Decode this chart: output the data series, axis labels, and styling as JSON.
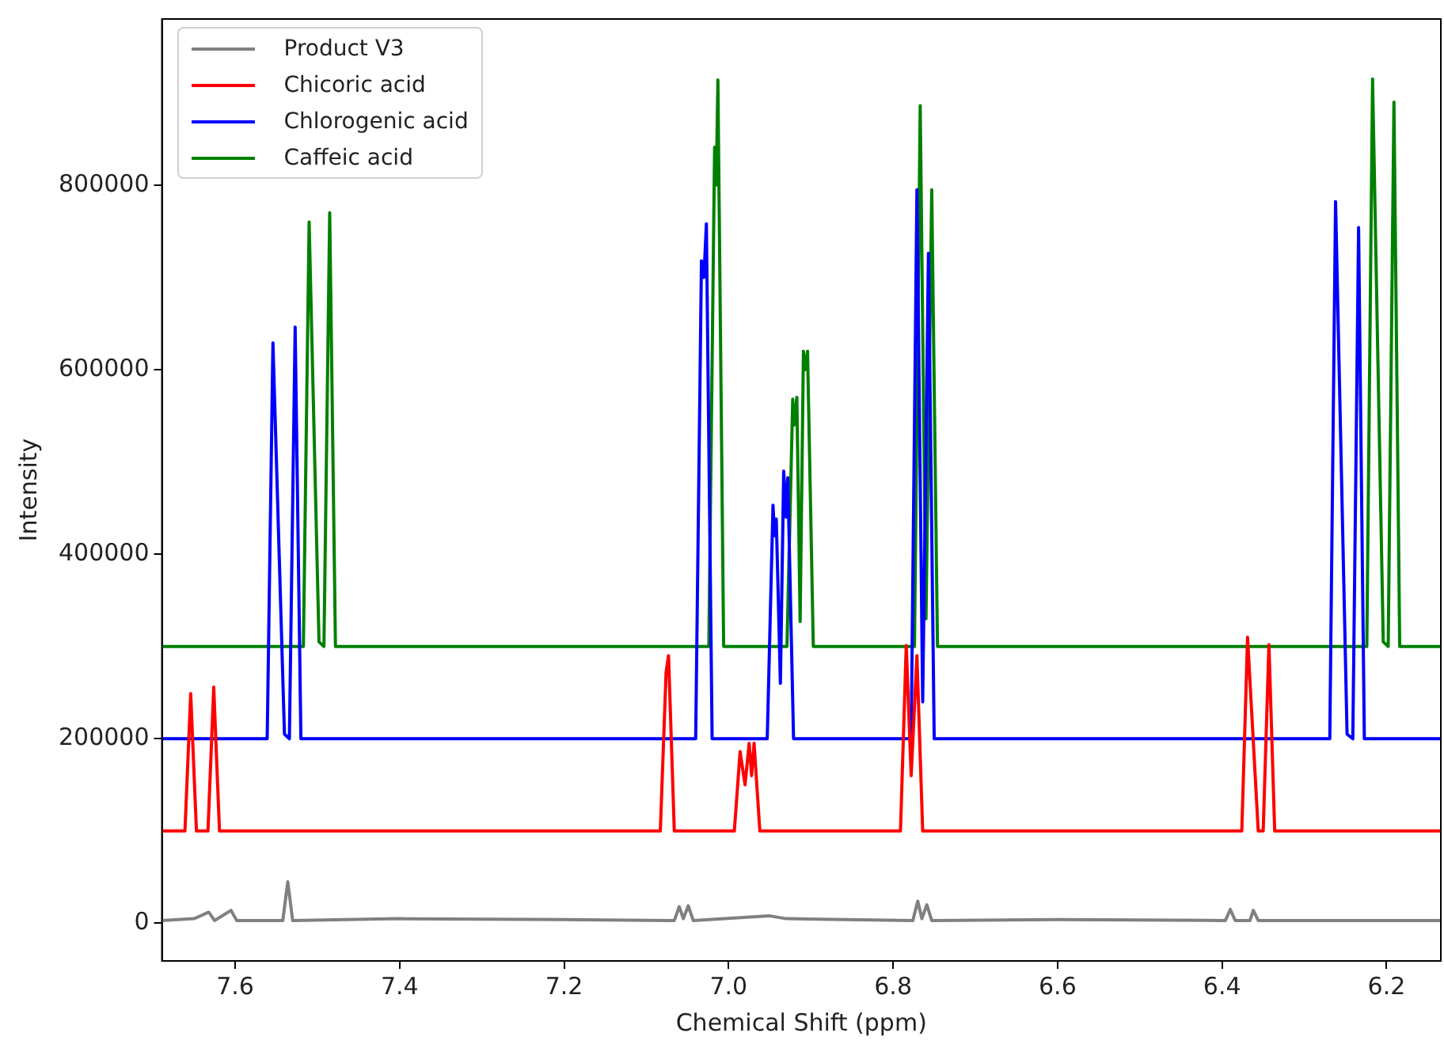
{
  "chart_data": {
    "type": "line",
    "xlabel": "Chemical Shift (ppm)",
    "ylabel": "Intensity",
    "xlim": [
      7.689,
      6.134
    ],
    "ylim": [
      -40800,
      980000
    ],
    "xticks": [
      7.6,
      7.4,
      7.2,
      {
        "value": 7,
        "label": "7.0"
      },
      6.8,
      6.6,
      6.4,
      6.2
    ],
    "yticks": [
      0,
      200000,
      400000,
      600000,
      800000
    ],
    "legend": "top left",
    "marker": "none",
    "line_style": "solid",
    "series": [
      {
        "name": "Product V3",
        "color": "#808080",
        "x": [
          7.689,
          7.65,
          7.632,
          7.625,
          7.605,
          7.598,
          7.542,
          7.536,
          7.53,
          7.4,
          7.2,
          7.066,
          7.06,
          7.055,
          7.049,
          7.043,
          6.95,
          6.93,
          6.776,
          6.77,
          6.765,
          6.759,
          6.753,
          6.6,
          6.396,
          6.39,
          6.384,
          6.366,
          6.362,
          6.356,
          6.134
        ],
        "values": [
          3000,
          5000,
          12000,
          3000,
          14000,
          3000,
          3000,
          45000,
          3000,
          5000,
          4000,
          3000,
          18000,
          5000,
          19000,
          3000,
          8000,
          5000,
          3000,
          24000,
          5000,
          20000,
          3000,
          4000,
          3000,
          15000,
          3000,
          3000,
          14000,
          3000,
          3000
        ]
      },
      {
        "name": "Chicoric acid",
        "color": "#ff0000",
        "x": [
          7.689,
          7.661,
          7.654,
          7.647,
          7.633,
          7.626,
          7.619,
          7.083,
          7.076,
          7.073,
          7.066,
          6.993,
          6.986,
          6.98,
          6.975,
          6.972,
          6.969,
          6.962,
          6.791,
          6.784,
          6.778,
          6.771,
          6.764,
          6.376,
          6.369,
          6.356,
          6.35,
          6.343,
          6.336,
          6.134
        ],
        "values": [
          100000,
          100000,
          249000,
          100000,
          100000,
          256000,
          100000,
          100000,
          272000,
          290000,
          100000,
          100000,
          186000,
          150000,
          195000,
          160000,
          195000,
          100000,
          100000,
          301000,
          160000,
          290000,
          100000,
          100000,
          310000,
          100000,
          100000,
          302000,
          100000,
          100000
        ]
      },
      {
        "name": "Chlorogenic acid",
        "color": "#0000ff",
        "x": [
          7.689,
          7.561,
          7.554,
          7.54,
          7.534,
          7.527,
          7.52,
          7.04,
          7.033,
          7.03,
          7.027,
          7.02,
          6.953,
          6.946,
          6.944,
          6.942,
          6.937,
          6.933,
          6.93,
          6.928,
          6.921,
          6.778,
          6.771,
          6.764,
          6.757,
          6.75,
          6.269,
          6.262,
          6.248,
          6.241,
          6.234,
          6.227,
          6.134
        ],
        "values": [
          200000,
          200000,
          629000,
          205000,
          200000,
          646000,
          200000,
          200000,
          718000,
          700000,
          758000,
          200000,
          200000,
          453000,
          420000,
          438000,
          260000,
          490000,
          440000,
          483000,
          200000,
          200000,
          795000,
          240000,
          726000,
          200000,
          200000,
          782000,
          205000,
          200000,
          754000,
          200000,
          200000
        ]
      },
      {
        "name": "Caffeic acid",
        "color": "#008000",
        "x": [
          7.689,
          7.517,
          7.51,
          7.498,
          7.492,
          7.485,
          7.478,
          7.024,
          7.017,
          7.015,
          7.013,
          7.006,
          6.929,
          6.922,
          6.92,
          6.917,
          6.913,
          6.909,
          6.907,
          6.904,
          6.897,
          6.774,
          6.767,
          6.76,
          6.753,
          6.746,
          6.224,
          6.217,
          6.204,
          6.198,
          6.191,
          6.184,
          6.134
        ],
        "values": [
          300000,
          300000,
          760000,
          305000,
          300000,
          770000,
          300000,
          300000,
          841000,
          800000,
          914000,
          300000,
          300000,
          568000,
          540000,
          570000,
          327000,
          620000,
          600000,
          620000,
          300000,
          300000,
          886000,
          330000,
          795000,
          300000,
          300000,
          915000,
          305000,
          300000,
          890000,
          300000,
          300000
        ]
      }
    ]
  }
}
